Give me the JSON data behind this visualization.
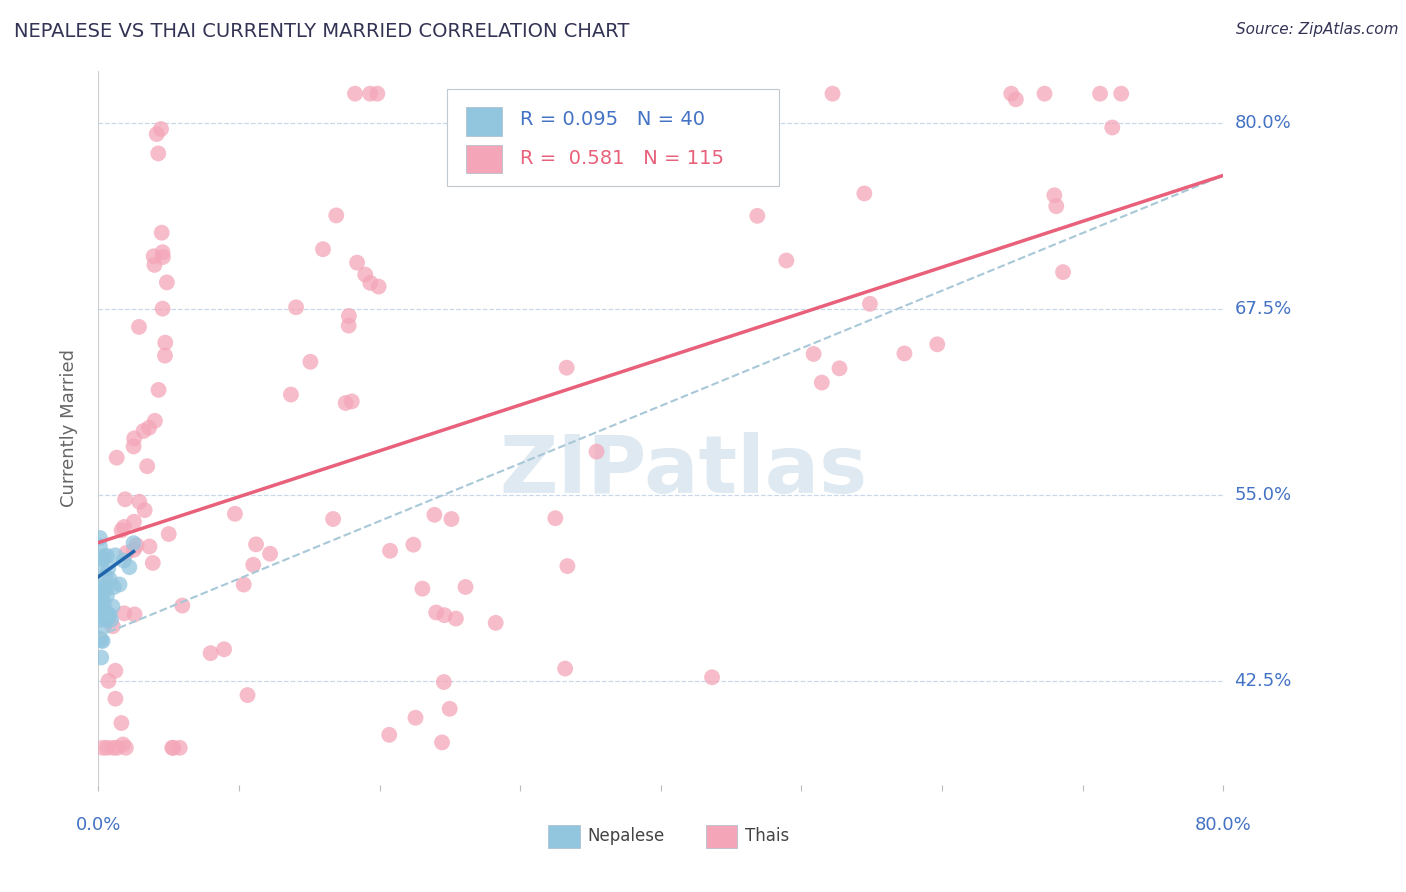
{
  "title": "NEPALESE VS THAI CURRENTLY MARRIED CORRELATION CHART",
  "source_text": "Source: ZipAtlas.com",
  "ylabel": "Currently Married",
  "xlim": [
    0.0,
    0.8
  ],
  "ylim": [
    0.355,
    0.835
  ],
  "yticks": [
    0.425,
    0.55,
    0.675,
    0.8
  ],
  "ytick_labels": [
    "42.5%",
    "55.0%",
    "67.5%",
    "80.0%"
  ],
  "xticks": [
    0.0,
    0.1,
    0.2,
    0.3,
    0.4,
    0.5,
    0.6,
    0.7,
    0.8
  ],
  "legend_R_nepalese": "0.095",
  "legend_N_nepalese": "40",
  "legend_R_thais": "0.581",
  "legend_N_thais": "115",
  "nepalese_color": "#92c5de",
  "thais_color": "#f4a6b8",
  "nepalese_line_color": "#2166ac",
  "thais_line_color": "#e8607a",
  "dashed_line_color": "#a8c8d8",
  "title_color": "#333355",
  "source_color": "#333355",
  "label_color": "#4472C4",
  "background_color": "#ffffff",
  "grid_color": "#c8d8ea",
  "watermark_text": "ZIPatlas",
  "nep_line_x": [
    0.0,
    0.025
  ],
  "nep_line_y": [
    0.495,
    0.512
  ],
  "thai_line_x": [
    0.0,
    0.8
  ],
  "thai_line_y": [
    0.518,
    0.765
  ],
  "dash_line_x": [
    0.0,
    0.8
  ],
  "dash_line_y": [
    0.455,
    0.765
  ]
}
